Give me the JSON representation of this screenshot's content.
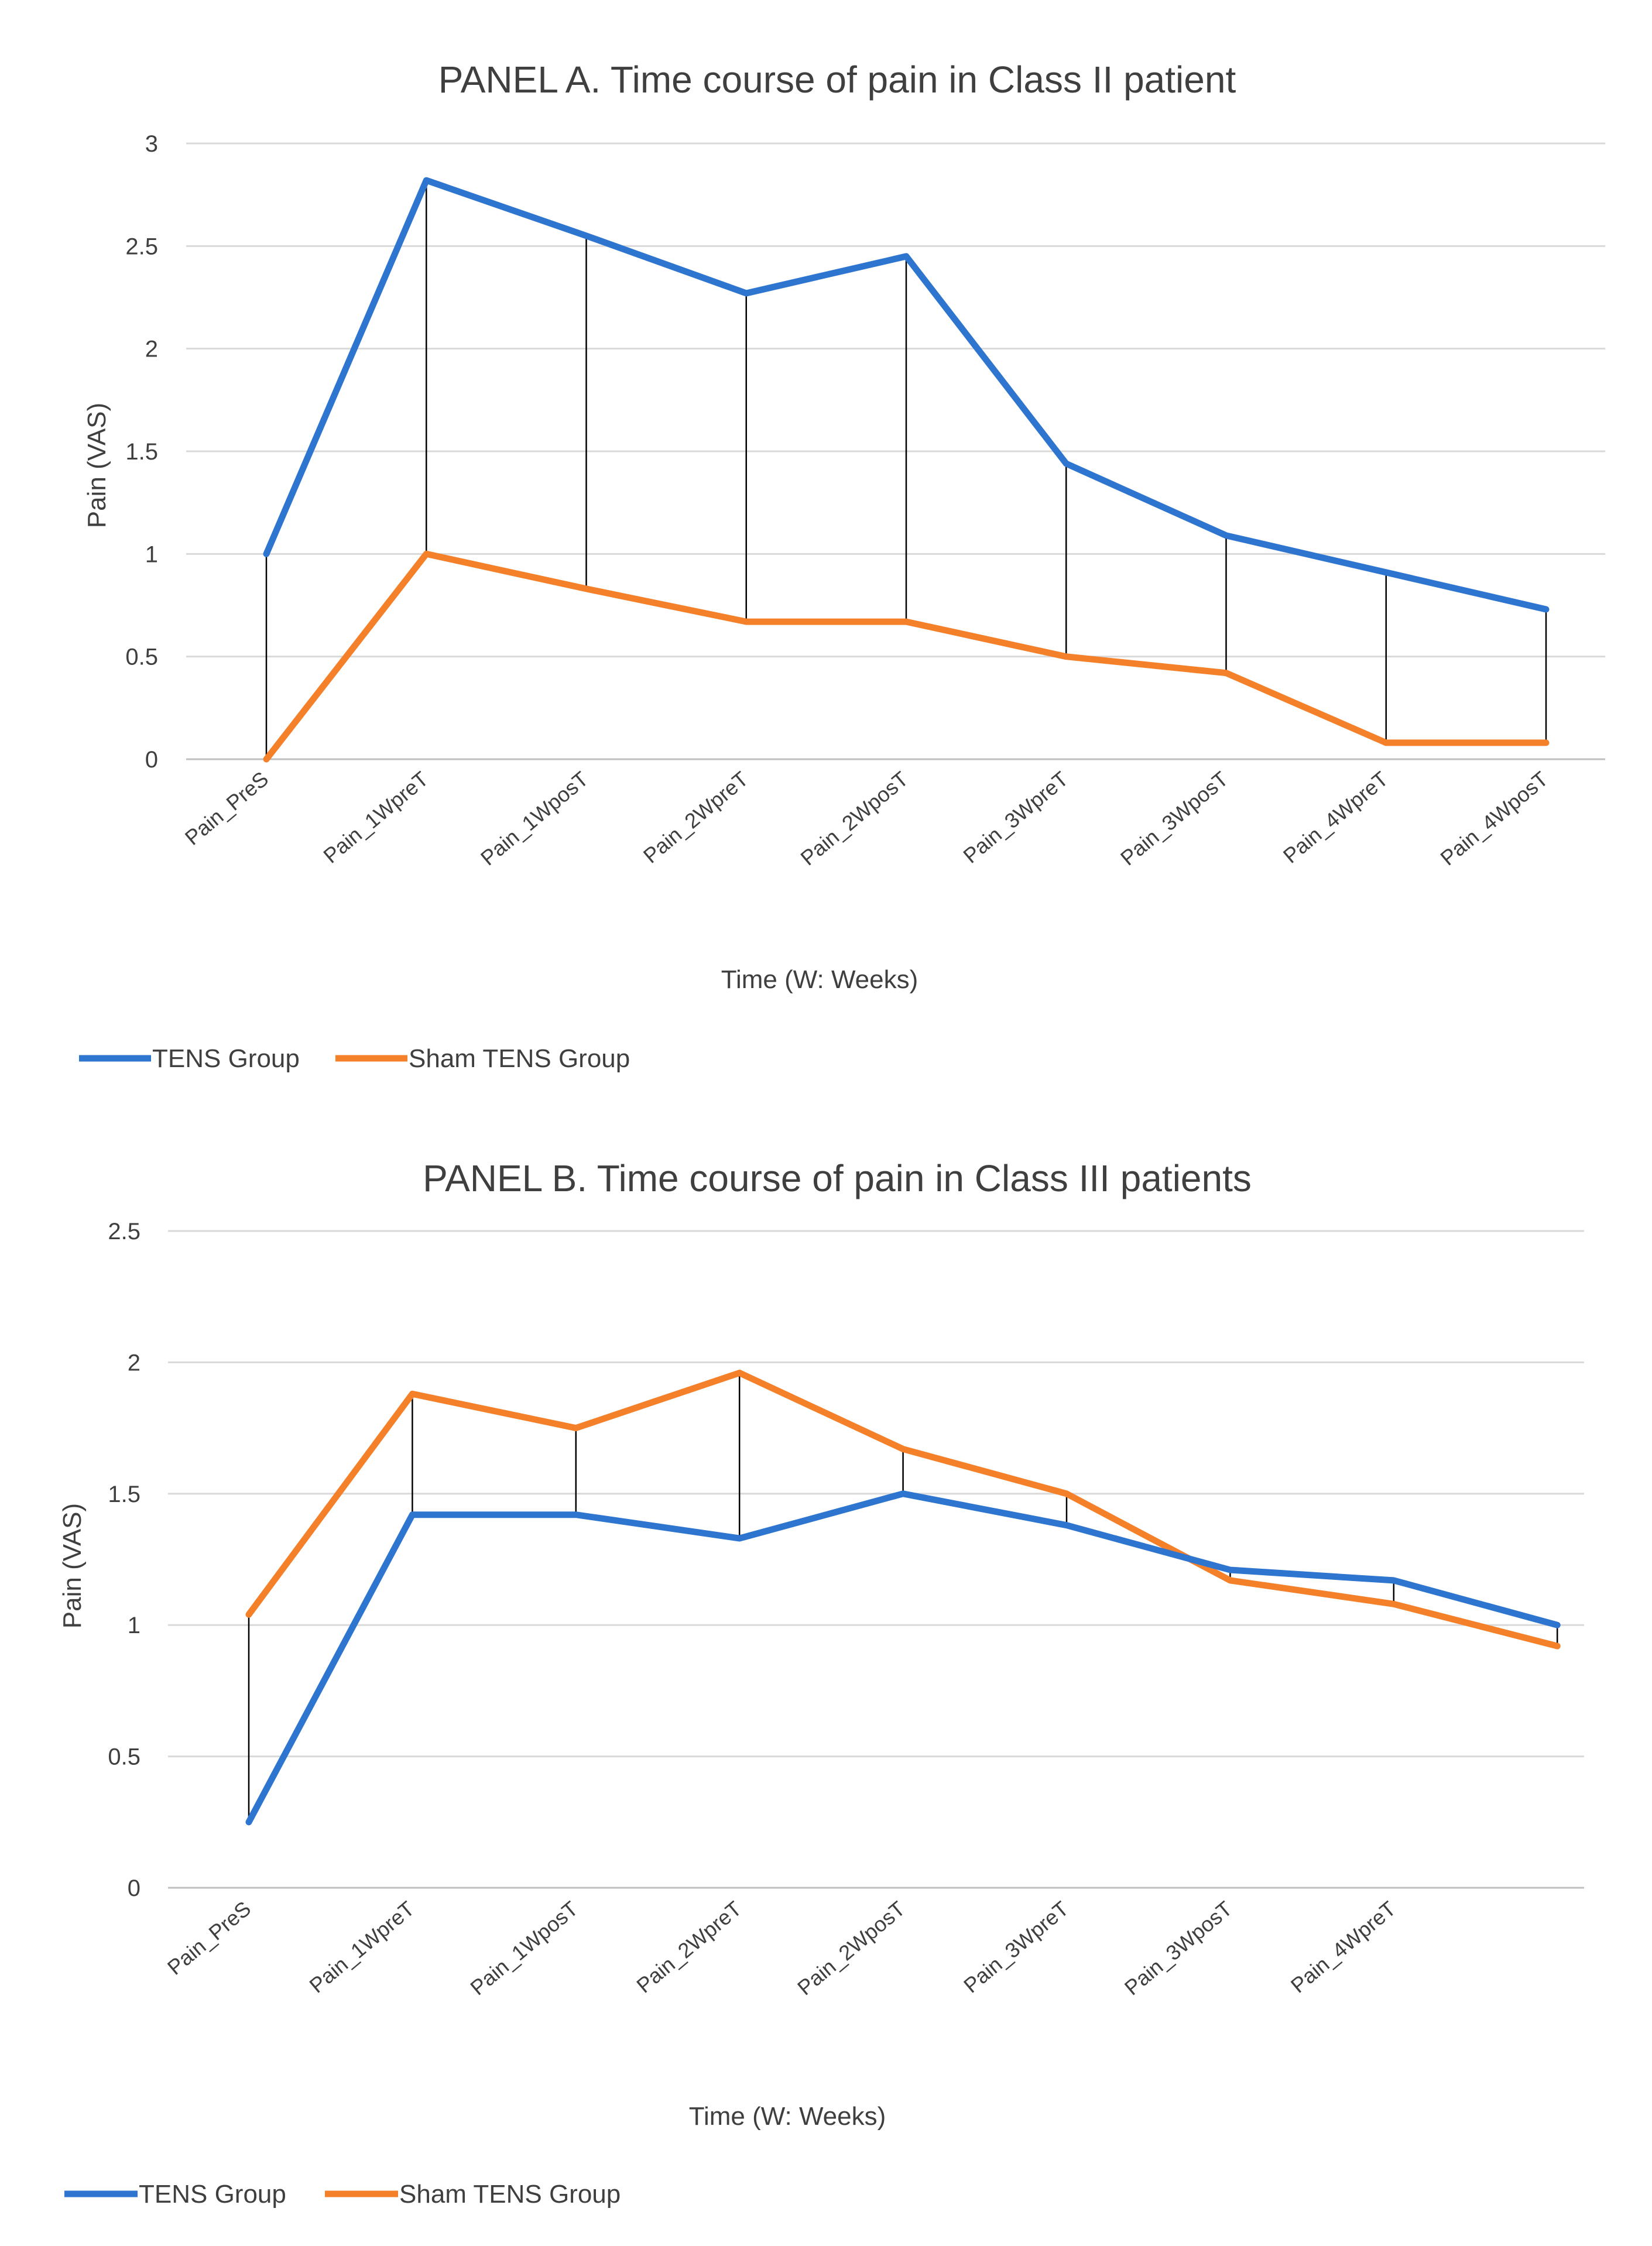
{
  "chart_data": [
    {
      "type": "line",
      "title": "PANEL A. Time course of pain in Class II patient",
      "xlabel": "Time (W: Weeks)",
      "ylabel": "Pain  (VAS)",
      "ylim": [
        0,
        3
      ],
      "yticks": [
        "0",
        "0.5",
        "1",
        "1.5",
        "2",
        "2.5",
        "3"
      ],
      "categories": [
        "Pain_PreS",
        "Pain_1WpreT",
        "Pain_1WposT",
        "Pain_2WpreT",
        "Pain_2WposT",
        "Pain_3WpreT",
        "Pain_3WposT",
        "Pain_4WpreT",
        "Pain_4WposT"
      ],
      "drop_lines": true,
      "legend": "bottom-left",
      "series": [
        {
          "name": "TENS Group",
          "color": "#2e75d0",
          "values": [
            1.0,
            2.82,
            2.55,
            2.27,
            2.45,
            1.44,
            1.09,
            0.91,
            0.73
          ]
        },
        {
          "name": "Sham TENS Group",
          "color": "#f5802a",
          "values": [
            0.0,
            1.0,
            0.83,
            0.67,
            0.67,
            0.5,
            0.42,
            0.08,
            0.08
          ]
        }
      ]
    },
    {
      "type": "line",
      "title": "PANEL B. Time course of pain in Class III patients",
      "xlabel": "Time (W: Weeks)",
      "ylabel": "Pain  (VAS)",
      "ylim": [
        0,
        2.5
      ],
      "yticks": [
        "0",
        "0.5",
        "1",
        "1.5",
        "2",
        "2.5"
      ],
      "categories": [
        "Pain_PreS",
        "Pain_1WpreT",
        "Pain_1WposT",
        "Pain_2WpreT",
        "Pain_2WposT",
        "Pain_3WpreT",
        "Pain_3WposT",
        "Pain_4WpreT",
        ""
      ],
      "drop_lines": true,
      "legend": "bottom-left",
      "series": [
        {
          "name": "TENS Group",
          "color": "#2e75d0",
          "values": [
            0.25,
            1.42,
            1.42,
            1.33,
            1.5,
            1.38,
            1.21,
            1.17,
            1.0
          ]
        },
        {
          "name": "Sham TENS Group",
          "color": "#f5802a",
          "values": [
            1.04,
            1.88,
            1.75,
            1.96,
            1.67,
            1.5,
            1.17,
            1.08,
            0.92
          ]
        }
      ]
    }
  ]
}
